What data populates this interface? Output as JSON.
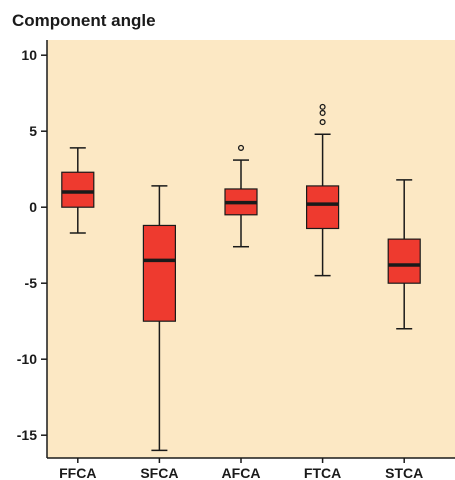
{
  "chart_data": {
    "type": "box",
    "title": "Component angle",
    "xlabel": "",
    "ylabel": "",
    "ylim": [
      -16.5,
      11
    ],
    "yticks": [
      10,
      5,
      0,
      -5,
      -10,
      -15
    ],
    "grid": false,
    "categories": [
      "FFCA",
      "SFCA",
      "AFCA",
      "FTCA",
      "STCA"
    ],
    "boxes": [
      {
        "category": "FFCA",
        "whisker_low": -1.7,
        "q1": 0.0,
        "median": 1.0,
        "q3": 2.3,
        "whisker_high": 3.9,
        "outliers": []
      },
      {
        "category": "SFCA",
        "whisker_low": -16.0,
        "q1": -7.5,
        "median": -3.5,
        "q3": -1.2,
        "whisker_high": 1.4,
        "outliers": []
      },
      {
        "category": "AFCA",
        "whisker_low": -2.6,
        "q1": -0.5,
        "median": 0.3,
        "q3": 1.2,
        "whisker_high": 3.1,
        "outliers": [
          3.9
        ]
      },
      {
        "category": "FTCA",
        "whisker_low": -4.5,
        "q1": -1.4,
        "median": 0.2,
        "q3": 1.4,
        "whisker_high": 4.8,
        "outliers": [
          5.6,
          6.2,
          6.6
        ]
      },
      {
        "category": "STCA",
        "whisker_low": -8.0,
        "q1": -5.0,
        "median": -3.8,
        "q3": -2.1,
        "whisker_high": 1.8,
        "outliers": []
      }
    ],
    "colors": {
      "plot_background": "#FCE8C4",
      "box_fill": "#EE3A2F",
      "line": "#1a1a1a"
    }
  }
}
